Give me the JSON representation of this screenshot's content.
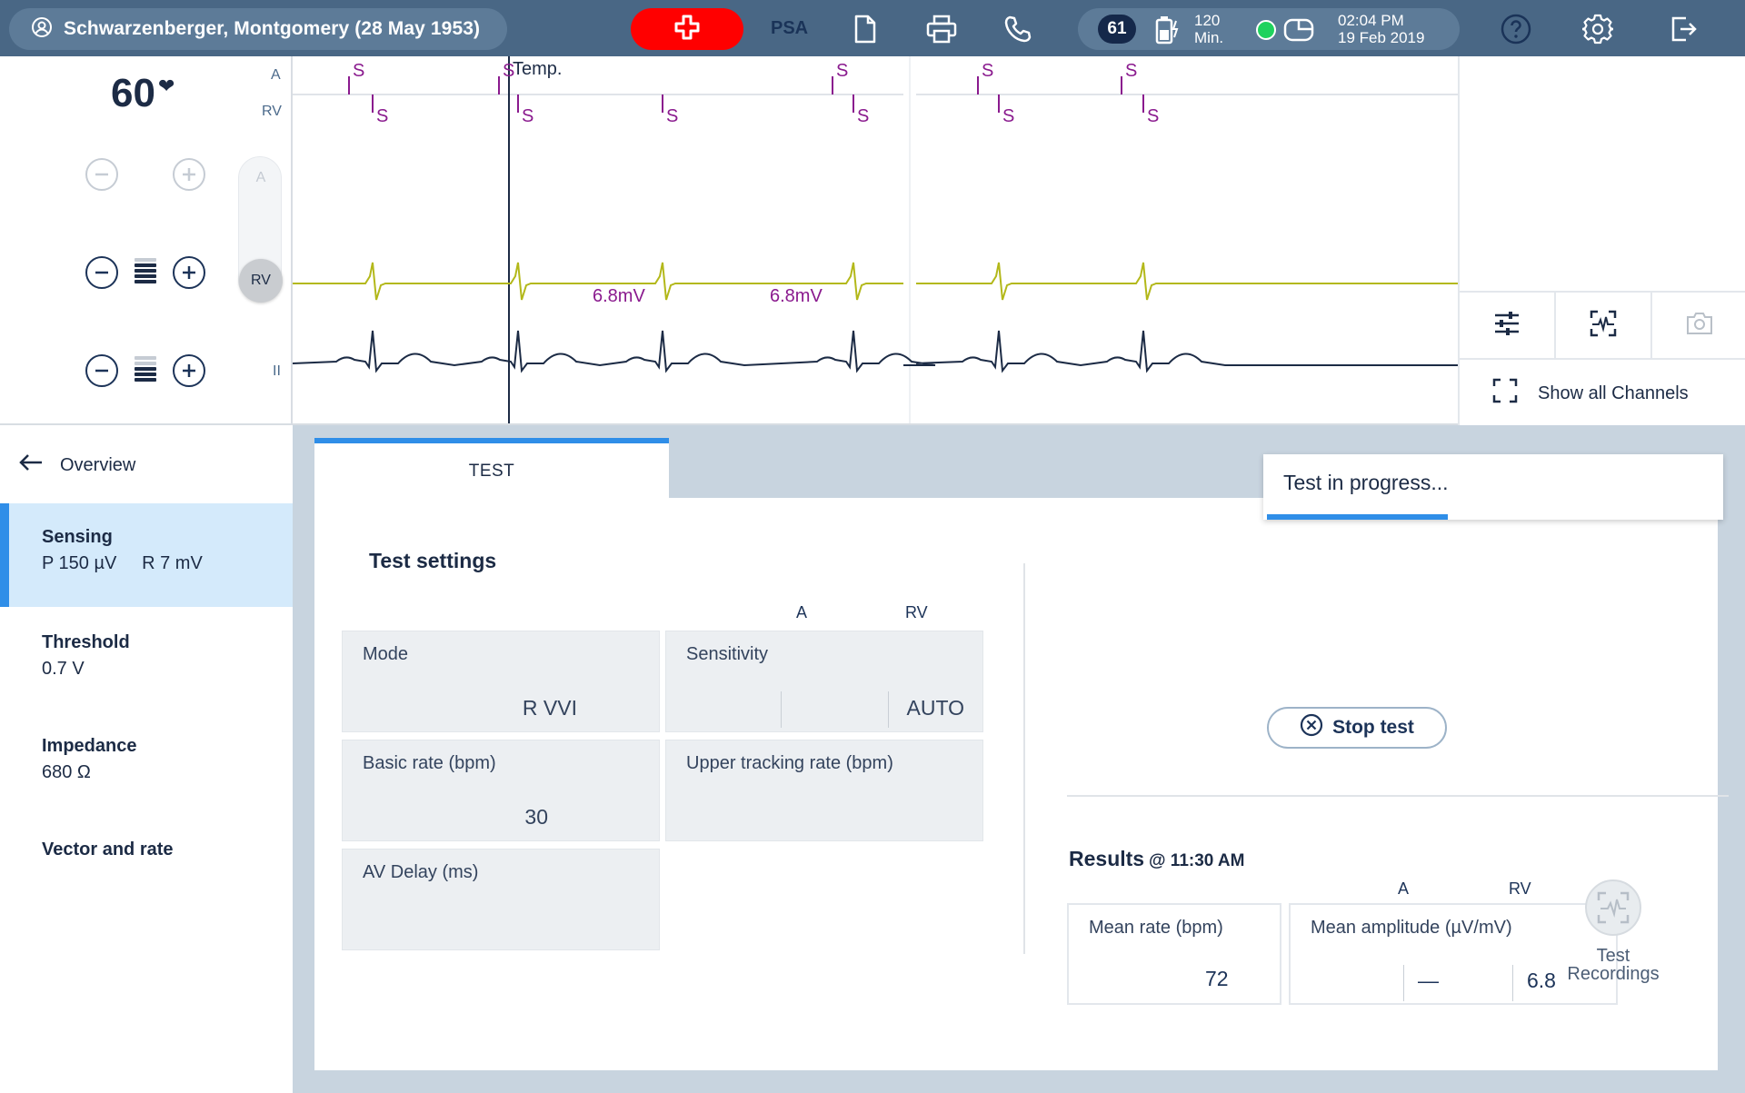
{
  "header": {
    "patient_name": "Schwarzenberger, Montgomery (28 May 1953)",
    "psa_label": "PSA",
    "badge_count": "61",
    "battery_minutes_line1": "120",
    "battery_minutes_line2": "Min.",
    "time": "02:04 PM",
    "date": "19 Feb 2019",
    "colors": {
      "bar": "#496785",
      "emergency": "#ff0000",
      "connected": "#1fd25e"
    }
  },
  "controls": {
    "heart_rate": "60",
    "heart_icon": "heart-icon",
    "channel_a": "A",
    "channel_rv": "RV",
    "channel_ii": "II",
    "slider_a": "A",
    "slider_rv": "RV"
  },
  "ecg": {
    "marker_label": "Temp.",
    "sense_marker": "S",
    "amplitude_1": "6.8mV",
    "amplitude_2": "6.8mV"
  },
  "tools": {
    "show_all": "Show all Channels",
    "icons": [
      "sliders-icon",
      "ecg-scan-icon",
      "camera-icon",
      "expand-icon"
    ]
  },
  "nav": {
    "back_label": "Overview",
    "items": [
      {
        "title": "Sensing",
        "value": "P 150 µV     R 7 mV"
      },
      {
        "title": "Threshold",
        "value": "0.7 V"
      },
      {
        "title": "Impedance",
        "value": "680 Ω"
      },
      {
        "title": "Vector and rate",
        "value": ""
      }
    ]
  },
  "main": {
    "tab_label": "TEST",
    "progress_text": "Test in progress...",
    "progress_fraction": 0.4,
    "test_settings_title": "Test settings",
    "col_a": "A",
    "col_rv": "RV",
    "mode_label": "Mode",
    "mode_value": "R VVI",
    "sensitivity_label": "Sensitivity",
    "sensitivity_rv": "AUTO",
    "basic_rate_label": "Basic rate (bpm)",
    "basic_rate_value": "30",
    "utr_label": "Upper tracking rate (bpm)",
    "av_delay_label": "AV Delay (ms)",
    "stop_label": "Stop test",
    "results_title": "Results",
    "results_time": "@ 11:30 AM",
    "res_col_a": "A",
    "res_col_rv": "RV",
    "mean_rate_label": "Mean rate (bpm)",
    "mean_rate_value": "72",
    "mean_amp_label": "Mean amplitude (µV/mV)",
    "mean_amp_a": "—",
    "mean_amp_rv": "6.8",
    "recordings_line1": "Test",
    "recordings_line2": "Recordings"
  }
}
